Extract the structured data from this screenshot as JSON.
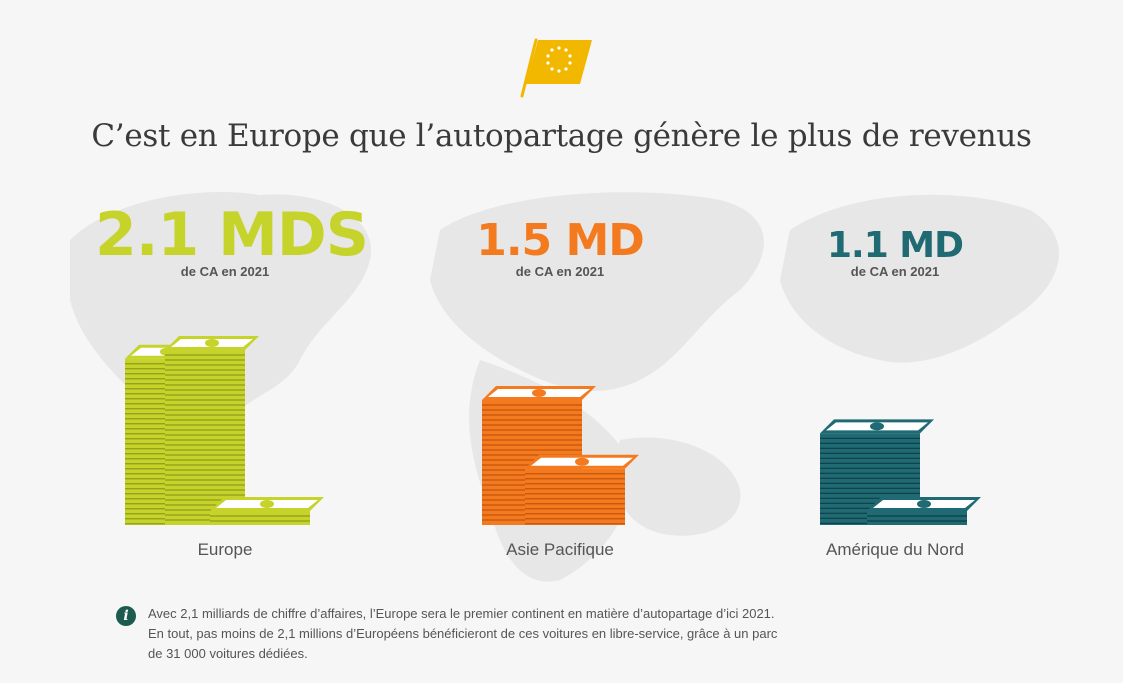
{
  "title": "C’est en Europe que l’autopartage génère le plus de revenus",
  "chart_data": {
    "type": "bar",
    "title": "C’est en Europe que l’autopartage génère le plus de revenus",
    "categories": [
      "Europe",
      "Asie Pacifique",
      "Amérique du Nord"
    ],
    "values": [
      2.1,
      1.5,
      1.1
    ],
    "value_labels": [
      "2.1 MDS",
      "1.5 MD",
      "1.1 MD"
    ],
    "value_sublabel": "de CA en 2021",
    "colors": [
      "#c5d32a",
      "#f47a20",
      "#1f6a73"
    ]
  },
  "regions": [
    {
      "amount": "2.1 MDS",
      "sub": "de CA en 2021",
      "label": "Europe",
      "color": "#c5d32a",
      "dark": "#8f9a1a",
      "light": "#e6ee8a"
    },
    {
      "amount": "1.5 MD",
      "sub": "de CA en 2021",
      "label": "Asie Pacifique",
      "color": "#f47a20",
      "dark": "#c4550c",
      "light": "#fbb87a"
    },
    {
      "amount": "1.1 MD",
      "sub": "de CA en 2021",
      "label": "Amérique du Nord",
      "color": "#1f6a73",
      "dark": "#0f3f45",
      "light": "#4f9aa2"
    }
  ],
  "note": {
    "icon": "info-icon",
    "lines": [
      "Avec 2,1 milliards de chiffre d’affaires, l’Europe sera le premier continent en matière d’autopartage d’ici 2021.",
      "En tout, pas moins de 2,1 millions d’Européens bénéficieront de ces voitures en libre-service, grâce à un parc",
      "de 31 000 voitures dédiées."
    ]
  },
  "flag_color": "#f2b800"
}
